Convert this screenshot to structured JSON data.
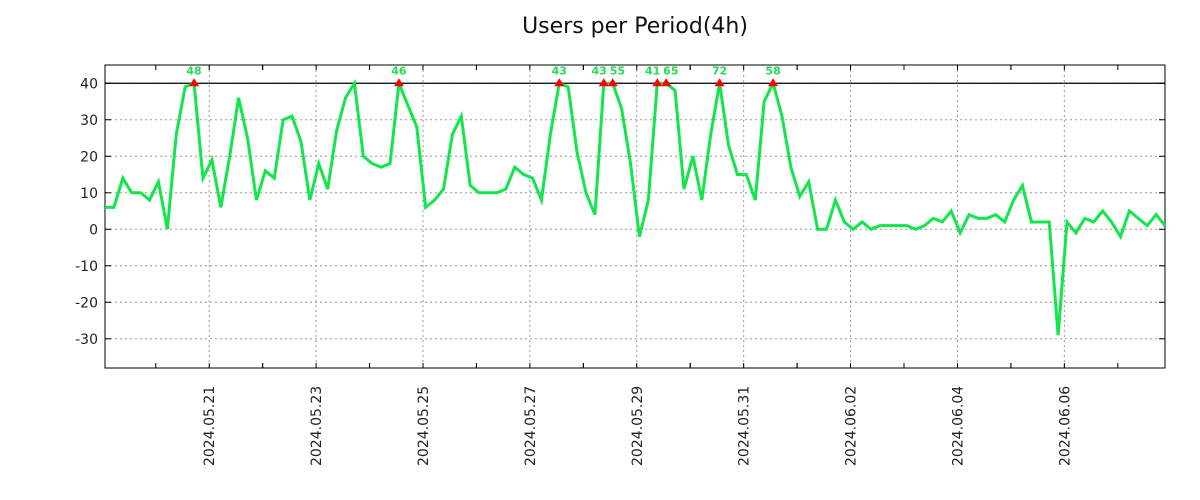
{
  "chart_data": {
    "type": "line",
    "title": "Users per Period(4h)",
    "xlabel": "",
    "ylabel": "",
    "ylim": [
      -38,
      45
    ],
    "xlim_index": [
      0,
      119
    ],
    "yticks": [
      40,
      30,
      20,
      10,
      0,
      -10,
      -20,
      -30
    ],
    "xticks": [
      {
        "label": "2024.05.21",
        "index": 11.7
      },
      {
        "label": "2024.05.23",
        "index": 23.7
      },
      {
        "label": "2024.05.25",
        "index": 35.7
      },
      {
        "label": "2024.05.27",
        "index": 47.7
      },
      {
        "label": "2024.05.29",
        "index": 59.7
      },
      {
        "label": "2024.05.31",
        "index": 71.7
      },
      {
        "label": "2024.06.02",
        "index": 83.7
      },
      {
        "label": "2024.06.04",
        "index": 95.7
      },
      {
        "label": "2024.06.06",
        "index": 107.7
      }
    ],
    "grid": true,
    "threshold": 40,
    "line_color": "#11e64a",
    "marker_color": "#ff0000",
    "series": [
      {
        "name": "users",
        "values": [
          6,
          6,
          14,
          10,
          10,
          8,
          13,
          0,
          26,
          39,
          40,
          14,
          19,
          6,
          20,
          36,
          25,
          8,
          16,
          14,
          30,
          31,
          24,
          8,
          18,
          11,
          27,
          36,
          40,
          20,
          18,
          17,
          18,
          40,
          34,
          28,
          6,
          8,
          11,
          26,
          31,
          12,
          10,
          10,
          10,
          11,
          17,
          15,
          14,
          8,
          26,
          40,
          39,
          21,
          10,
          4,
          40,
          40,
          33,
          18,
          -2,
          8,
          40,
          40,
          38,
          11,
          20,
          8,
          26,
          40,
          23,
          15,
          15,
          8,
          35,
          40,
          31,
          17,
          9,
          13,
          0,
          0,
          8,
          2,
          0,
          2,
          0,
          1,
          1,
          1,
          1,
          0,
          1,
          3,
          2,
          5,
          -1,
          4,
          3,
          3,
          4,
          2,
          8,
          12,
          2,
          2,
          2,
          -29,
          2,
          -1,
          3,
          2,
          5,
          2,
          -2,
          5,
          3,
          1,
          4,
          1
        ]
      }
    ],
    "capped_points": [
      {
        "index": 10,
        "label": "48"
      },
      {
        "index": 33,
        "label": "46"
      },
      {
        "index": 51,
        "label": "43"
      },
      {
        "index": 56,
        "label": "43"
      },
      {
        "index": 57,
        "label": "55"
      },
      {
        "index": 62,
        "label": "41"
      },
      {
        "index": 63,
        "label": "65"
      },
      {
        "index": 69,
        "label": "72"
      },
      {
        "index": 75,
        "label": "58"
      }
    ]
  }
}
